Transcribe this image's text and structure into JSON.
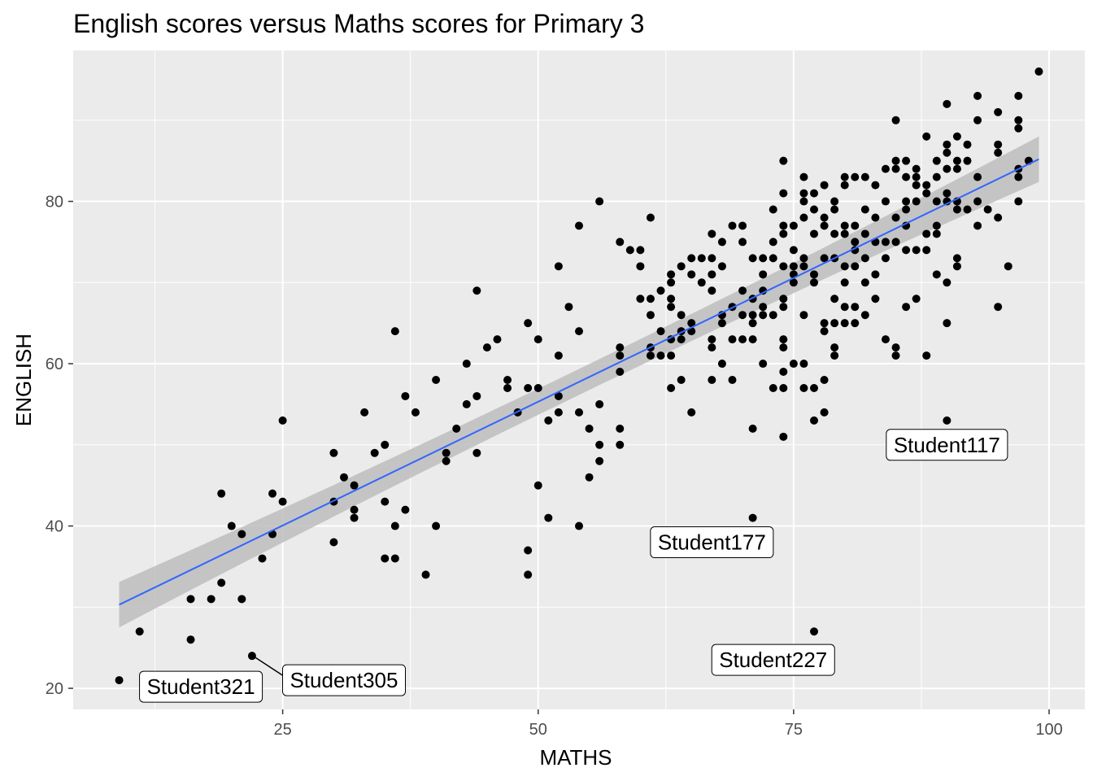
{
  "chart_data": {
    "type": "scatter",
    "title": "English scores versus Maths scores for Primary 3",
    "xlabel": "MATHS",
    "ylabel": "ENGLISH",
    "xlim": [
      4.5,
      103.5
    ],
    "ylim": [
      17.4,
      98.6
    ],
    "x_ticks": [
      25,
      50,
      75,
      100
    ],
    "y_ticks": [
      20,
      40,
      60,
      80
    ],
    "x_tick_labels": [
      "25",
      "50",
      "75",
      "100"
    ],
    "y_tick_labels": [
      "20",
      "40",
      "60",
      "80"
    ],
    "grid": true,
    "legend": "none",
    "colors": {
      "panel_bg": "#ebebeb",
      "grid": "#ffffff",
      "point": "#000000",
      "trend_line": "#3366ff",
      "confidence_band": "#bdbdbd",
      "label_bg": "#ffffff",
      "label_border": "#000000"
    },
    "trend_line": {
      "method": "linear",
      "x": [
        9,
        99
      ],
      "y": [
        30.3,
        85.2
      ],
      "band_halfwidth": [
        2.8,
        1.6
      ]
    },
    "points": [
      [
        99,
        96
      ],
      [
        93,
        93
      ],
      [
        97,
        93
      ],
      [
        90,
        92
      ],
      [
        85,
        90
      ],
      [
        93,
        90
      ],
      [
        95,
        91
      ],
      [
        97,
        90
      ],
      [
        97,
        89
      ],
      [
        95,
        87
      ],
      [
        92,
        87
      ],
      [
        88,
        88
      ],
      [
        90,
        87
      ],
      [
        91,
        88
      ],
      [
        89,
        85
      ],
      [
        90,
        86
      ],
      [
        92,
        85
      ],
      [
        91,
        85
      ],
      [
        98,
        85
      ],
      [
        97,
        84
      ],
      [
        97,
        83
      ],
      [
        95,
        86
      ],
      [
        90,
        84
      ],
      [
        89,
        83
      ],
      [
        88,
        82
      ],
      [
        86,
        83
      ],
      [
        85,
        84
      ],
      [
        84,
        84
      ],
      [
        85,
        85
      ],
      [
        87,
        84
      ],
      [
        86,
        85
      ],
      [
        90,
        81
      ],
      [
        91,
        84
      ],
      [
        93,
        83
      ],
      [
        91,
        80
      ],
      [
        90,
        80
      ],
      [
        91,
        79
      ],
      [
        93,
        80
      ],
      [
        92,
        79
      ],
      [
        94,
        79
      ],
      [
        97,
        80
      ],
      [
        95,
        78
      ],
      [
        93,
        77
      ],
      [
        88,
        81
      ],
      [
        87,
        83
      ],
      [
        87,
        82
      ],
      [
        86,
        80
      ],
      [
        86,
        79
      ],
      [
        85,
        78
      ],
      [
        86,
        77
      ],
      [
        87,
        80
      ],
      [
        85,
        75
      ],
      [
        84,
        75
      ],
      [
        86,
        74
      ],
      [
        87,
        74
      ],
      [
        88,
        74
      ],
      [
        88,
        76
      ],
      [
        89,
        76
      ],
      [
        89,
        80
      ],
      [
        89,
        77
      ],
      [
        90,
        70
      ],
      [
        89,
        71
      ],
      [
        91,
        73
      ],
      [
        91,
        72
      ],
      [
        90,
        65
      ],
      [
        96,
        72
      ],
      [
        95,
        67
      ],
      [
        88,
        61
      ],
      [
        85,
        61
      ],
      [
        85,
        62
      ],
      [
        84,
        63
      ],
      [
        86,
        67
      ],
      [
        87,
        68
      ],
      [
        82,
        70
      ],
      [
        83,
        71
      ],
      [
        82,
        73
      ],
      [
        84,
        73
      ],
      [
        83,
        75
      ],
      [
        82,
        76
      ],
      [
        81,
        74
      ],
      [
        81,
        77
      ],
      [
        82,
        79
      ],
      [
        83,
        78
      ],
      [
        84,
        80
      ],
      [
        83,
        82
      ],
      [
        82,
        83
      ],
      [
        81,
        83
      ],
      [
        80,
        83
      ],
      [
        80,
        82
      ],
      [
        79,
        80
      ],
      [
        79,
        79
      ],
      [
        78,
        82
      ],
      [
        77,
        81
      ],
      [
        76,
        81
      ],
      [
        76,
        80
      ],
      [
        77,
        79
      ],
      [
        78,
        78
      ],
      [
        78,
        77
      ],
      [
        79,
        76
      ],
      [
        80,
        76
      ],
      [
        80,
        77
      ],
      [
        81,
        75
      ],
      [
        79,
        73
      ],
      [
        80,
        72
      ],
      [
        81,
        72
      ],
      [
        80,
        70
      ],
      [
        79,
        68
      ],
      [
        79,
        65
      ],
      [
        80,
        65
      ],
      [
        81,
        65
      ],
      [
        81,
        67
      ],
      [
        83,
        68
      ],
      [
        82,
        66
      ],
      [
        80,
        67
      ],
      [
        78,
        65
      ],
      [
        78,
        64
      ],
      [
        79,
        62
      ],
      [
        79,
        61
      ],
      [
        78,
        58
      ],
      [
        78,
        54
      ],
      [
        77,
        53
      ],
      [
        76,
        57
      ],
      [
        77,
        57
      ],
      [
        76,
        60
      ],
      [
        76,
        66
      ],
      [
        77,
        70
      ],
      [
        76,
        73
      ],
      [
        75,
        74
      ],
      [
        75,
        72
      ],
      [
        74,
        72
      ],
      [
        73,
        73
      ],
      [
        72,
        73
      ],
      [
        73,
        75
      ],
      [
        74,
        76
      ],
      [
        75,
        77
      ],
      [
        74,
        77
      ],
      [
        73,
        79
      ],
      [
        74,
        81
      ],
      [
        74,
        85
      ],
      [
        76,
        83
      ],
      [
        76,
        78
      ],
      [
        77,
        76
      ],
      [
        78,
        73
      ],
      [
        77,
        71
      ],
      [
        76,
        72
      ],
      [
        75,
        71
      ],
      [
        75,
        70
      ],
      [
        74,
        68
      ],
      [
        74,
        67
      ],
      [
        73,
        66
      ],
      [
        72,
        66
      ],
      [
        71,
        66
      ],
      [
        72,
        67
      ],
      [
        71,
        68
      ],
      [
        72,
        69
      ],
      [
        70,
        69
      ],
      [
        71,
        73
      ],
      [
        72,
        71
      ],
      [
        70,
        75
      ],
      [
        69,
        77
      ],
      [
        70,
        77
      ],
      [
        68,
        75
      ],
      [
        67,
        76
      ],
      [
        67,
        73
      ],
      [
        68,
        72
      ],
      [
        67,
        71
      ],
      [
        67,
        69
      ],
      [
        66,
        70
      ],
      [
        65,
        71
      ],
      [
        65,
        73
      ],
      [
        66,
        73
      ],
      [
        64,
        72
      ],
      [
        63,
        71
      ],
      [
        63,
        70
      ],
      [
        62,
        69
      ],
      [
        63,
        68
      ],
      [
        61,
        68
      ],
      [
        60,
        68
      ],
      [
        61,
        66
      ],
      [
        60,
        72
      ],
      [
        60,
        74
      ],
      [
        61,
        78
      ],
      [
        59,
        74
      ],
      [
        58,
        75
      ],
      [
        63,
        67
      ],
      [
        64,
        66
      ],
      [
        65,
        65
      ],
      [
        65,
        64
      ],
      [
        64,
        64
      ],
      [
        64,
        63
      ],
      [
        63,
        63
      ],
      [
        62,
        64
      ],
      [
        61,
        62
      ],
      [
        61,
        61
      ],
      [
        62,
        61
      ],
      [
        63,
        61
      ],
      [
        64,
        58
      ],
      [
        63,
        57
      ],
      [
        65,
        54
      ],
      [
        67,
        58
      ],
      [
        67,
        62
      ],
      [
        67,
        63
      ],
      [
        68,
        66
      ],
      [
        68,
        65
      ],
      [
        68,
        60
      ],
      [
        69,
        63
      ],
      [
        69,
        67
      ],
      [
        70,
        66
      ],
      [
        70,
        63
      ],
      [
        71,
        63
      ],
      [
        71,
        65
      ],
      [
        72,
        60
      ],
      [
        74,
        63
      ],
      [
        74,
        62
      ],
      [
        74,
        59
      ],
      [
        74,
        57
      ],
      [
        73,
        57
      ],
      [
        75,
        60
      ],
      [
        74,
        51
      ],
      [
        71,
        52
      ],
      [
        69,
        58
      ],
      [
        71,
        41
      ],
      [
        77,
        27
      ],
      [
        90,
        53
      ],
      [
        58,
        62
      ],
      [
        58,
        61
      ],
      [
        58,
        59
      ],
      [
        58,
        52
      ],
      [
        58,
        50
      ],
      [
        56,
        55
      ],
      [
        56,
        50
      ],
      [
        56,
        48
      ],
      [
        55,
        52
      ],
      [
        55,
        46
      ],
      [
        54,
        54
      ],
      [
        54,
        64
      ],
      [
        54,
        77
      ],
      [
        56,
        80
      ],
      [
        53,
        67
      ],
      [
        52,
        72
      ],
      [
        52,
        61
      ],
      [
        52,
        56
      ],
      [
        52,
        54
      ],
      [
        51,
        53
      ],
      [
        50,
        63
      ],
      [
        50,
        57
      ],
      [
        49,
        65
      ],
      [
        49,
        57
      ],
      [
        48,
        54
      ],
      [
        47,
        57
      ],
      [
        47,
        58
      ],
      [
        46,
        63
      ],
      [
        45,
        62
      ],
      [
        44,
        69
      ],
      [
        43,
        60
      ],
      [
        44,
        56
      ],
      [
        43,
        55
      ],
      [
        42,
        52
      ],
      [
        41,
        49
      ],
      [
        41,
        48
      ],
      [
        40,
        58
      ],
      [
        44,
        49
      ],
      [
        37,
        56
      ],
      [
        38,
        54
      ],
      [
        36,
        64
      ],
      [
        37,
        42
      ],
      [
        35,
        43
      ],
      [
        36,
        40
      ],
      [
        35,
        36
      ],
      [
        36,
        36
      ],
      [
        35,
        50
      ],
      [
        34,
        49
      ],
      [
        33,
        54
      ],
      [
        32,
        45
      ],
      [
        31,
        46
      ],
      [
        32,
        42
      ],
      [
        32,
        41
      ],
      [
        30,
        49
      ],
      [
        30,
        43
      ],
      [
        30,
        38
      ],
      [
        25,
        53
      ],
      [
        24,
        44
      ],
      [
        25,
        43
      ],
      [
        24,
        39
      ],
      [
        23,
        36
      ],
      [
        21,
        39
      ],
      [
        20,
        40
      ],
      [
        19,
        44
      ],
      [
        19,
        33
      ],
      [
        21,
        31
      ],
      [
        18,
        31
      ],
      [
        16,
        31
      ],
      [
        16,
        26
      ],
      [
        22,
        24
      ],
      [
        11,
        27
      ],
      [
        9,
        21
      ],
      [
        40,
        40
      ],
      [
        39,
        34
      ],
      [
        49,
        37
      ],
      [
        49,
        34
      ],
      [
        50,
        45
      ],
      [
        51,
        41
      ],
      [
        54,
        40
      ]
    ],
    "annotations": [
      {
        "text": "Student117",
        "x": 90,
        "y": 53,
        "label_x": 90,
        "label_y": 50
      },
      {
        "text": "Student177",
        "x": 71,
        "y": 41,
        "label_x": 67,
        "label_y": 38
      },
      {
        "text": "Student227",
        "x": 77,
        "y": 27,
        "label_x": 73,
        "label_y": 23.5
      },
      {
        "text": "Student305",
        "x": 22,
        "y": 24,
        "label_x": 31,
        "label_y": 21,
        "leader": true
      },
      {
        "text": "Student321",
        "x": 9,
        "y": 21,
        "label_x": 17,
        "label_y": 20.2
      }
    ]
  }
}
